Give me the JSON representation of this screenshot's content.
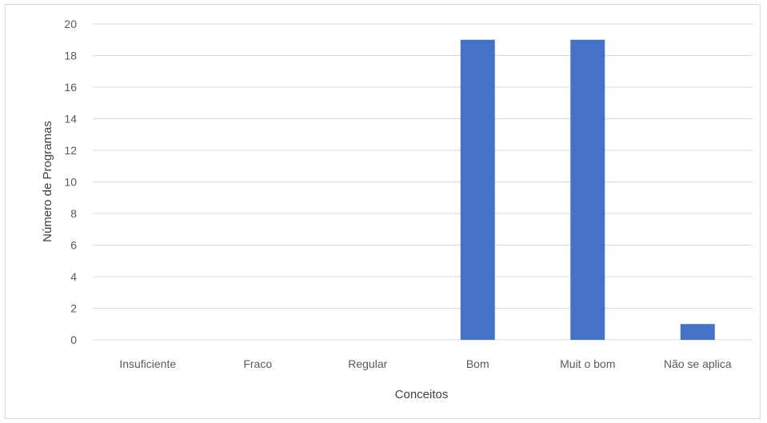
{
  "chart_data": {
    "type": "bar",
    "categories": [
      "Insuficiente",
      "Fraco",
      "Regular",
      "Bom",
      "Muit o bom",
      "Não se aplica"
    ],
    "values": [
      0,
      0,
      0,
      19,
      19,
      1
    ],
    "xlabel": "Conceitos",
    "ylabel": "Número de Programas",
    "ylim": [
      0,
      20
    ],
    "yticks": [
      0,
      2,
      4,
      6,
      8,
      10,
      12,
      14,
      16,
      18,
      20
    ],
    "grid": true,
    "legend": "none",
    "bar_color": "#4472c4"
  }
}
